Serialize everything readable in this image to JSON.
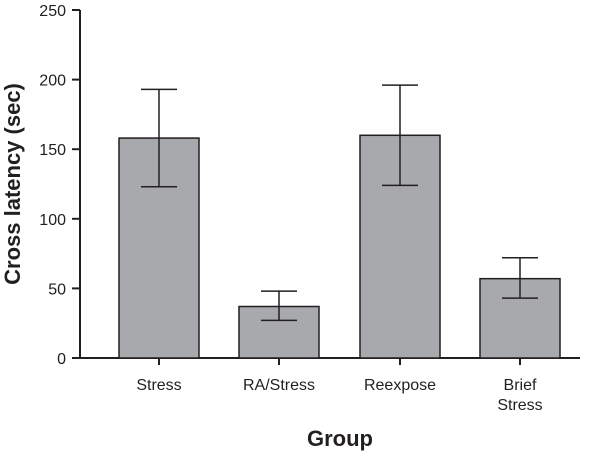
{
  "chart_data": {
    "type": "bar",
    "title": "",
    "xlabel": "Group",
    "ylabel": "Cross latency (sec)",
    "categories": [
      [
        "Stress"
      ],
      [
        "RA/Stress"
      ],
      [
        "Reexpose"
      ],
      [
        "Brief",
        "Stress"
      ]
    ],
    "values": [
      158,
      37,
      160,
      57
    ],
    "errors_upper": [
      193,
      48,
      196,
      72
    ],
    "errors_lower": [
      123,
      27,
      124,
      43
    ],
    "ylim": [
      0,
      250
    ],
    "yticks": [
      0,
      50,
      100,
      150,
      200,
      250
    ],
    "bar_color": "#a7a9ac",
    "grid": false,
    "legend": "none"
  }
}
